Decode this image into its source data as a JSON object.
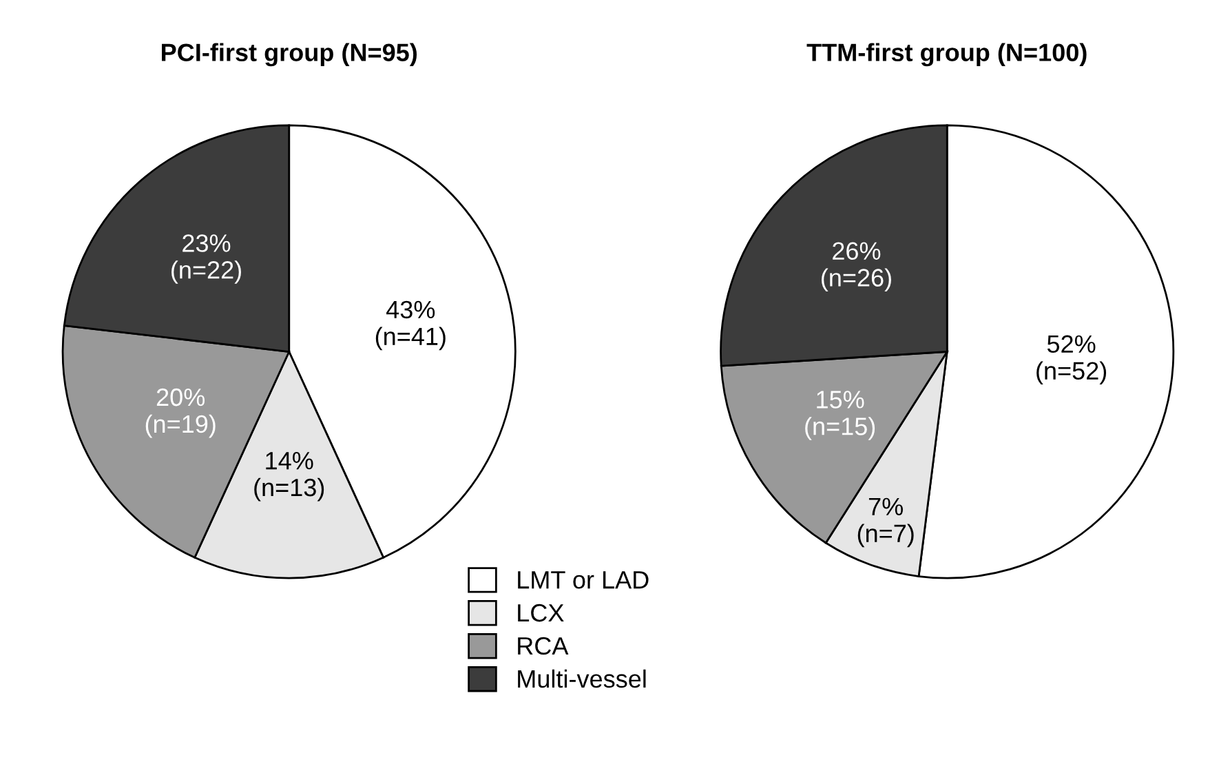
{
  "chart_data": [
    {
      "type": "pie",
      "title": "PCI-first group (N=95)",
      "categories": [
        "LMT or LAD",
        "LCX",
        "RCA",
        "Multi-vessel"
      ],
      "values": [
        41,
        13,
        19,
        22
      ],
      "colors": [
        "#ffffff",
        "#e6e6e6",
        "#999999",
        "#3c3c3c"
      ],
      "value_labels": [
        "43%\n(n=41)",
        "14%\n(n=13)",
        "20%\n(n=19)",
        "23%\n(n=22)"
      ],
      "legend": "bottom right"
    },
    {
      "type": "pie",
      "title": "TTM-first group (N=100)",
      "categories": [
        null,
        null,
        null,
        null
      ],
      "values": [
        52,
        7,
        15,
        26
      ],
      "colors": [
        "#ffffff",
        "#e6e6e6",
        "#999999",
        "#3c3c3c"
      ],
      "value_labels": [
        "52%\n(n=52)",
        "7%\n(n=7)",
        "15%\n(n=15)",
        "26%\n(n=26)"
      ]
    }
  ]
}
